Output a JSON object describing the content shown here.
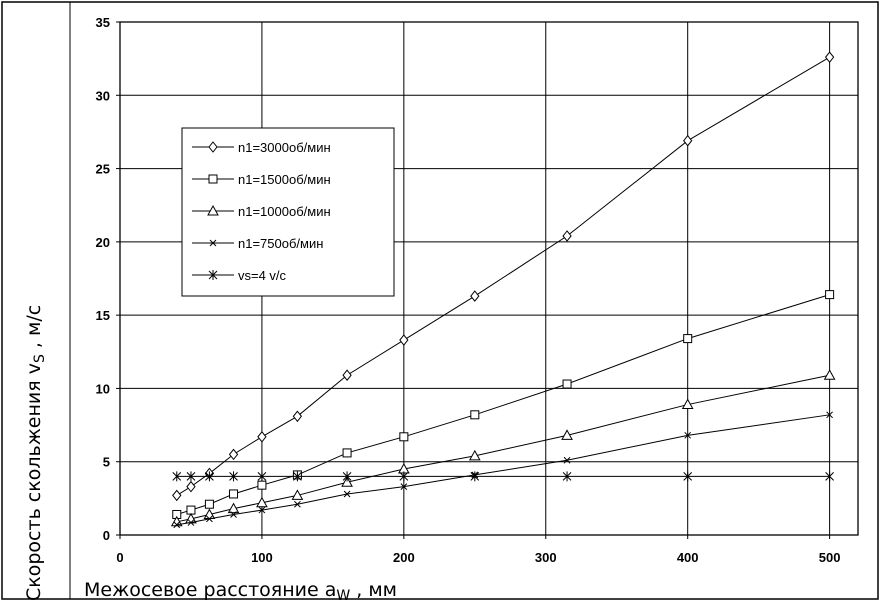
{
  "chart_data": {
    "type": "line",
    "title": "",
    "xlabel": "Межосевое расстояние a",
    "xlabel_sub": "W",
    "xlabel_unit": " , мм",
    "ylabel": "Скорость скольжения v",
    "ylabel_sub": "S",
    "ylabel_unit": " , м/с",
    "xlim": [
      0,
      520
    ],
    "ylim": [
      0,
      35
    ],
    "x_ticks": [
      "0",
      "100",
      "200",
      "300",
      "400",
      "500"
    ],
    "y_ticks": [
      "0",
      "5",
      "10",
      "15",
      "20",
      "25",
      "30",
      "35"
    ],
    "grid": true,
    "legend_position": "upper-left",
    "x": [
      40,
      50,
      63,
      80,
      100,
      125,
      160,
      200,
      250,
      315,
      400,
      500
    ],
    "series": [
      {
        "name": "n1=3000об/мин",
        "marker": "diamond",
        "values": [
          2.7,
          3.3,
          4.2,
          5.5,
          6.7,
          8.1,
          10.9,
          13.3,
          16.3,
          20.4,
          26.9,
          32.6
        ]
      },
      {
        "name": "n1=1500об/мин",
        "marker": "square",
        "values": [
          1.4,
          1.7,
          2.1,
          2.8,
          3.4,
          4.1,
          5.6,
          6.7,
          8.2,
          10.3,
          13.4,
          16.4
        ]
      },
      {
        "name": "n1=1000об/мин",
        "marker": "triangle",
        "values": [
          0.9,
          1.1,
          1.4,
          1.8,
          2.2,
          2.7,
          3.6,
          4.5,
          5.4,
          6.8,
          8.9,
          10.9
        ]
      },
      {
        "name": "n1=750об/мин",
        "marker": "x",
        "values": [
          0.7,
          0.85,
          1.1,
          1.4,
          1.7,
          2.1,
          2.8,
          3.3,
          4.1,
          5.1,
          6.8,
          8.2
        ]
      },
      {
        "name": "vs=4 v/c",
        "marker": "asterisk",
        "values": [
          4,
          4,
          4,
          4,
          4,
          4,
          4,
          4,
          4,
          4,
          4,
          4
        ]
      }
    ]
  }
}
